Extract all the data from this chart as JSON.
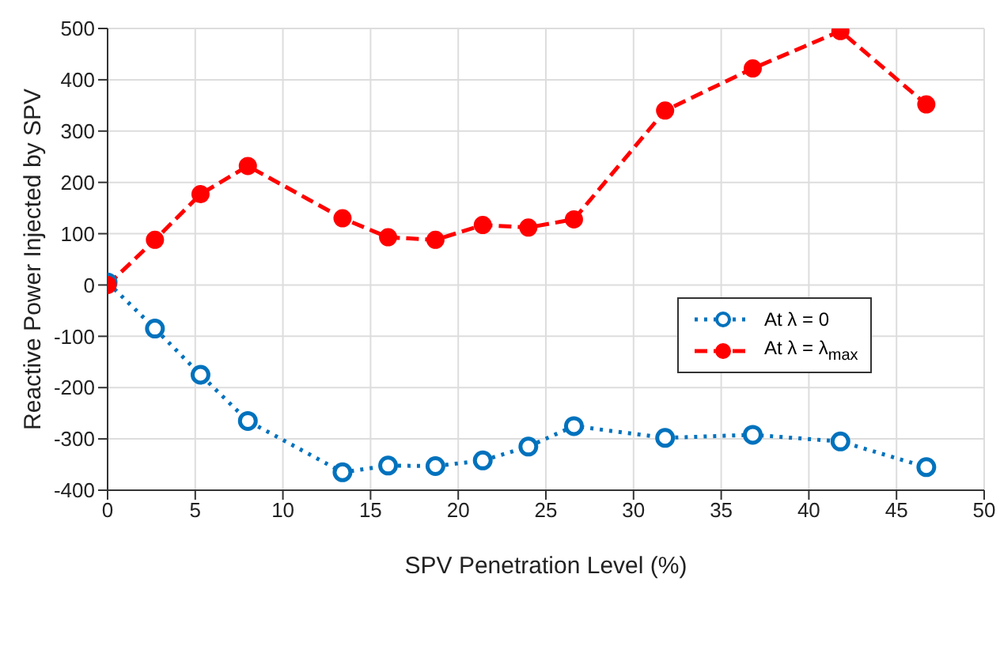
{
  "chart_data": {
    "type": "line",
    "xlabel": "SPV Penetration Level (%)",
    "ylabel": "Reactive Power Injected by SPV",
    "x": [
      0,
      2.7,
      5.3,
      8,
      13.4,
      16,
      18.7,
      21.4,
      24,
      26.6,
      31.8,
      36.8,
      41.8,
      46.7
    ],
    "series": [
      {
        "name": "At λ = 0",
        "color": "#0072bd",
        "line_style": "dotted",
        "values": [
          5,
          -85,
          -175,
          -265,
          -365,
          -352,
          -353,
          -342,
          -315,
          -275,
          -298,
          -292,
          -305,
          -355
        ]
      },
      {
        "name": "At λ = λ$_{max}$",
        "color": "#ff0000",
        "line_style": "dashed",
        "values": [
          0,
          88,
          177,
          232,
          130,
          93,
          88,
          117,
          112,
          128,
          340,
          422,
          495,
          352
        ]
      }
    ],
    "xlim": [
      0,
      50
    ],
    "xticks": [
      0,
      5,
      10,
      15,
      20,
      25,
      30,
      35,
      40,
      45,
      50
    ],
    "ylim": [
      -400,
      500
    ],
    "yticks": [
      -400,
      -300,
      -200,
      -100,
      0,
      100,
      200,
      300,
      400,
      500
    ],
    "grid": true,
    "legend": "right",
    "marker": "circle"
  }
}
